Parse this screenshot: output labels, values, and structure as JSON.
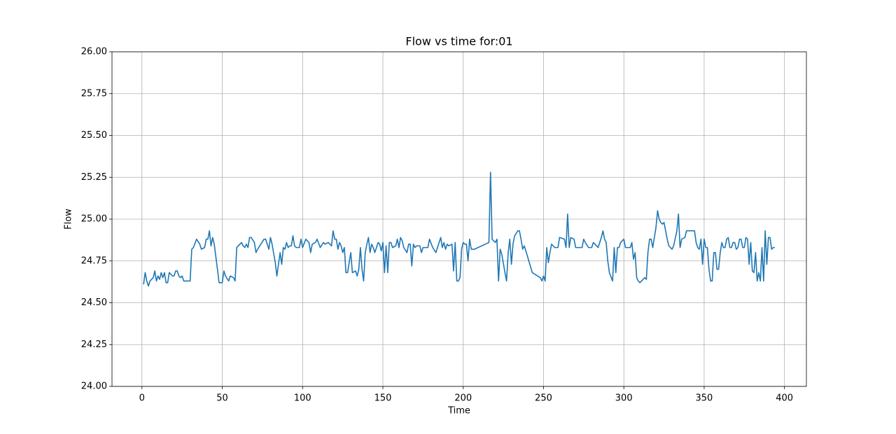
{
  "chart_data": {
    "type": "line",
    "title": "Flow vs time for:01",
    "x_label": "Time",
    "y_label": "Flow",
    "xlim": [
      -18.65,
      413.65
    ],
    "xticks": [
      0,
      50,
      100,
      150,
      200,
      250,
      300,
      350,
      400
    ],
    "ylim": [
      24,
      26
    ],
    "yticks": [
      {
        "value": 24,
        "label": "24.00"
      },
      {
        "value": 24.25,
        "label": "24.25"
      },
      {
        "value": 24.5,
        "label": "24.50"
      },
      {
        "value": 24.75,
        "label": "24.75"
      },
      {
        "value": 25,
        "label": "25.00"
      },
      {
        "value": 25.25,
        "label": "25.25"
      },
      {
        "value": 25.5,
        "label": "25.50"
      },
      {
        "value": 25.75,
        "label": "25.75"
      },
      {
        "value": 26,
        "label": "26.00"
      }
    ],
    "grid": true,
    "x": [
      1,
      2,
      3,
      4,
      5,
      7,
      8,
      9,
      10,
      11,
      12,
      13,
      14,
      15,
      16,
      17,
      19,
      20,
      21,
      22,
      23,
      24,
      25,
      26,
      30,
      31,
      32,
      34,
      36,
      37,
      39,
      40,
      41,
      42,
      43,
      44,
      45,
      47,
      48,
      50,
      51,
      52,
      54,
      55,
      57,
      58,
      59,
      60,
      62,
      63,
      64,
      65,
      66,
      67,
      68,
      70,
      71,
      72,
      74,
      76,
      77,
      78,
      79,
      80,
      81,
      83,
      84,
      85,
      86,
      87,
      88,
      89,
      90,
      91,
      92,
      93,
      94,
      95,
      96,
      98,
      99,
      100,
      102,
      104,
      105,
      106,
      108,
      109,
      111,
      113,
      114,
      116,
      118,
      119,
      120,
      121,
      122,
      123,
      124,
      125,
      126,
      127,
      128,
      130,
      131,
      133,
      134,
      135,
      136,
      137,
      138,
      139,
      140,
      141,
      142,
      143,
      144,
      145,
      146,
      147,
      148,
      149,
      150,
      151,
      152,
      153,
      154,
      155,
      156,
      158,
      159,
      160,
      161,
      162,
      163,
      165,
      166,
      167,
      168,
      169,
      170,
      171,
      173,
      174,
      175,
      176,
      178,
      179,
      181,
      183,
      184,
      186,
      187,
      188,
      189,
      190,
      191,
      193,
      194,
      195,
      196,
      197,
      198,
      199,
      200,
      201,
      202,
      203,
      204,
      205,
      207,
      216,
      217,
      218,
      220,
      221,
      222,
      223,
      224,
      226,
      227,
      228,
      229,
      230,
      231,
      232,
      234,
      235,
      236,
      237,
      238,
      239,
      243,
      248,
      249,
      250,
      251,
      252,
      253,
      254,
      255,
      257,
      259,
      260,
      263,
      264,
      265,
      266,
      267,
      269,
      270,
      274,
      275,
      276,
      278,
      280,
      281,
      284,
      286,
      287,
      288,
      289,
      290,
      291,
      293,
      294,
      295,
      296,
      297,
      298,
      300,
      301,
      304,
      305,
      306,
      307,
      308,
      309,
      310,
      312,
      313,
      314,
      315,
      316,
      317,
      318,
      320,
      321,
      322,
      323,
      324,
      325,
      327,
      328,
      329,
      330,
      331,
      333,
      334,
      335,
      336,
      338,
      339,
      340,
      344,
      345,
      346,
      347,
      348,
      349,
      350,
      351,
      352,
      353,
      354,
      355,
      356,
      357,
      358,
      359,
      360,
      361,
      362,
      363,
      364,
      365,
      366,
      367,
      368,
      369,
      370,
      371,
      372,
      373,
      374,
      375,
      376,
      377,
      378,
      379,
      380,
      381,
      382,
      383,
      384,
      385,
      386,
      387,
      388,
      389,
      390,
      391,
      392,
      393,
      394
    ],
    "series": [
      {
        "name": "Flow",
        "color": "#1f77b4",
        "values": [
          24.61,
          24.68,
          24.63,
          24.6,
          24.63,
          24.65,
          24.69,
          24.63,
          24.66,
          24.64,
          24.68,
          24.65,
          24.68,
          24.62,
          24.62,
          24.68,
          24.66,
          24.66,
          24.69,
          24.69,
          24.66,
          24.65,
          24.66,
          24.63,
          24.63,
          24.82,
          24.83,
          24.88,
          24.85,
          24.82,
          24.83,
          24.88,
          24.88,
          24.93,
          24.84,
          24.89,
          24.85,
          24.7,
          24.62,
          24.62,
          24.69,
          24.66,
          24.63,
          24.66,
          24.65,
          24.63,
          24.83,
          24.84,
          24.86,
          24.84,
          24.83,
          24.85,
          24.83,
          24.89,
          24.89,
          24.86,
          24.8,
          24.82,
          24.85,
          24.88,
          24.88,
          24.85,
          24.82,
          24.89,
          24.85,
          24.74,
          24.66,
          24.73,
          24.8,
          24.73,
          24.83,
          24.82,
          24.86,
          24.83,
          24.84,
          24.84,
          24.9,
          24.84,
          24.83,
          24.83,
          24.88,
          24.83,
          24.88,
          24.86,
          24.8,
          24.85,
          24.86,
          24.88,
          24.83,
          24.86,
          24.85,
          24.86,
          24.84,
          24.93,
          24.88,
          24.88,
          24.82,
          24.86,
          24.84,
          24.8,
          24.83,
          24.68,
          24.68,
          24.8,
          24.68,
          24.69,
          24.66,
          24.7,
          24.83,
          24.7,
          24.63,
          24.8,
          24.85,
          24.89,
          24.8,
          24.85,
          24.83,
          24.8,
          24.83,
          24.86,
          24.85,
          24.81,
          24.86,
          24.68,
          24.84,
          24.68,
          24.86,
          24.86,
          24.83,
          24.84,
          24.88,
          24.83,
          24.89,
          24.87,
          24.83,
          24.8,
          24.85,
          24.85,
          24.72,
          24.85,
          24.83,
          24.84,
          24.84,
          24.8,
          24.83,
          24.83,
          24.83,
          24.88,
          24.83,
          24.8,
          24.83,
          24.89,
          24.83,
          24.86,
          24.82,
          24.85,
          24.84,
          24.85,
          24.69,
          24.86,
          24.63,
          24.63,
          24.65,
          24.82,
          24.86,
          24.85,
          24.85,
          24.75,
          24.88,
          24.82,
          24.82,
          24.86,
          25.28,
          24.88,
          24.86,
          24.88,
          24.63,
          24.82,
          24.79,
          24.68,
          24.63,
          24.8,
          24.88,
          24.73,
          24.85,
          24.9,
          24.93,
          24.93,
          24.88,
          24.82,
          24.84,
          24.81,
          24.68,
          24.65,
          24.63,
          24.66,
          24.63,
          24.83,
          24.74,
          24.8,
          24.85,
          24.83,
          24.83,
          24.89,
          24.88,
          24.83,
          25.03,
          24.83,
          24.89,
          24.88,
          24.83,
          24.83,
          24.88,
          24.86,
          24.83,
          24.83,
          24.86,
          24.83,
          24.89,
          24.93,
          24.88,
          24.86,
          24.75,
          24.68,
          24.63,
          24.83,
          24.68,
          24.83,
          24.83,
          24.86,
          24.88,
          24.83,
          24.83,
          24.86,
          24.76,
          24.8,
          24.65,
          24.63,
          24.62,
          24.64,
          24.65,
          24.64,
          24.8,
          24.88,
          24.88,
          24.83,
          24.95,
          25.05,
          25,
          24.98,
          24.97,
          24.98,
          24.88,
          24.84,
          24.83,
          24.82,
          24.84,
          24.93,
          25.03,
          24.83,
          24.88,
          24.89,
          24.93,
          24.93,
          24.93,
          24.86,
          24.83,
          24.82,
          24.88,
          24.73,
          24.88,
          24.83,
          24.83,
          24.7,
          24.63,
          24.63,
          24.8,
          24.8,
          24.7,
          24.7,
          24.8,
          24.86,
          24.83,
          24.83,
          24.88,
          24.89,
          24.83,
          24.83,
          24.86,
          24.86,
          24.82,
          24.83,
          24.88,
          24.88,
          24.83,
          24.83,
          24.89,
          24.88,
          24.73,
          24.86,
          24.69,
          24.68,
          24.8,
          24.63,
          24.68,
          24.63,
          24.83,
          24.63,
          24.93,
          24.73,
          24.89,
          24.89,
          24.82,
          24.83,
          24.83
        ]
      }
    ]
  }
}
